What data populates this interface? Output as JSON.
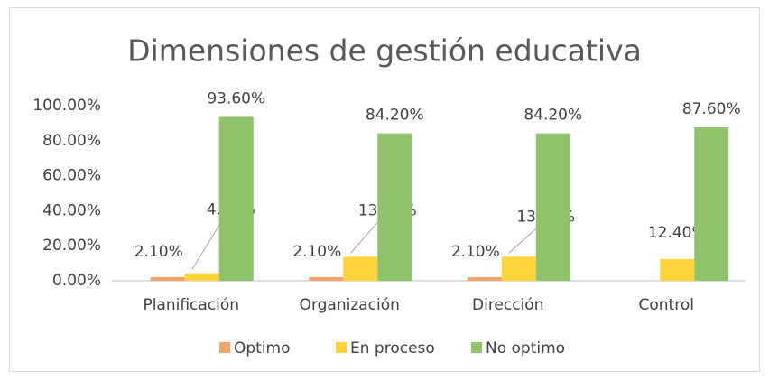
{
  "chart_data": {
    "type": "bar",
    "title": "Dimensiones de gestión educativa",
    "categories": [
      "Planificación",
      "Organización",
      "Dirección",
      "Control"
    ],
    "series": [
      {
        "name": "Optimo",
        "color": "#f3a46b",
        "values": [
          2.1,
          2.1,
          2.1,
          null
        ],
        "value_labels": [
          "2.10%",
          "2.10%",
          "2.10%",
          null
        ]
      },
      {
        "name": "En proceso",
        "color": "#fdd33c",
        "values": [
          4.3,
          13.7,
          13.7,
          12.4
        ],
        "value_labels": [
          "4.30%",
          "13.70%",
          "13.70%",
          "12.40%"
        ]
      },
      {
        "name": "No optimo",
        "color": "#8fc36b",
        "values": [
          93.6,
          84.2,
          84.2,
          87.6
        ],
        "value_labels": [
          "93.60%",
          "84.20%",
          "84.20%",
          "87.60%"
        ]
      }
    ],
    "ylim": [
      0,
      100
    ],
    "yticks": [
      {
        "value": 0,
        "label": "0.00%"
      },
      {
        "value": 20,
        "label": "20.00%"
      },
      {
        "value": 40,
        "label": "40.00%"
      },
      {
        "value": 60,
        "label": "60.00%"
      },
      {
        "value": 80,
        "label": "80.00%"
      },
      {
        "value": 100,
        "label": "100.00%"
      }
    ],
    "grid": false,
    "legend": "bottom"
  }
}
